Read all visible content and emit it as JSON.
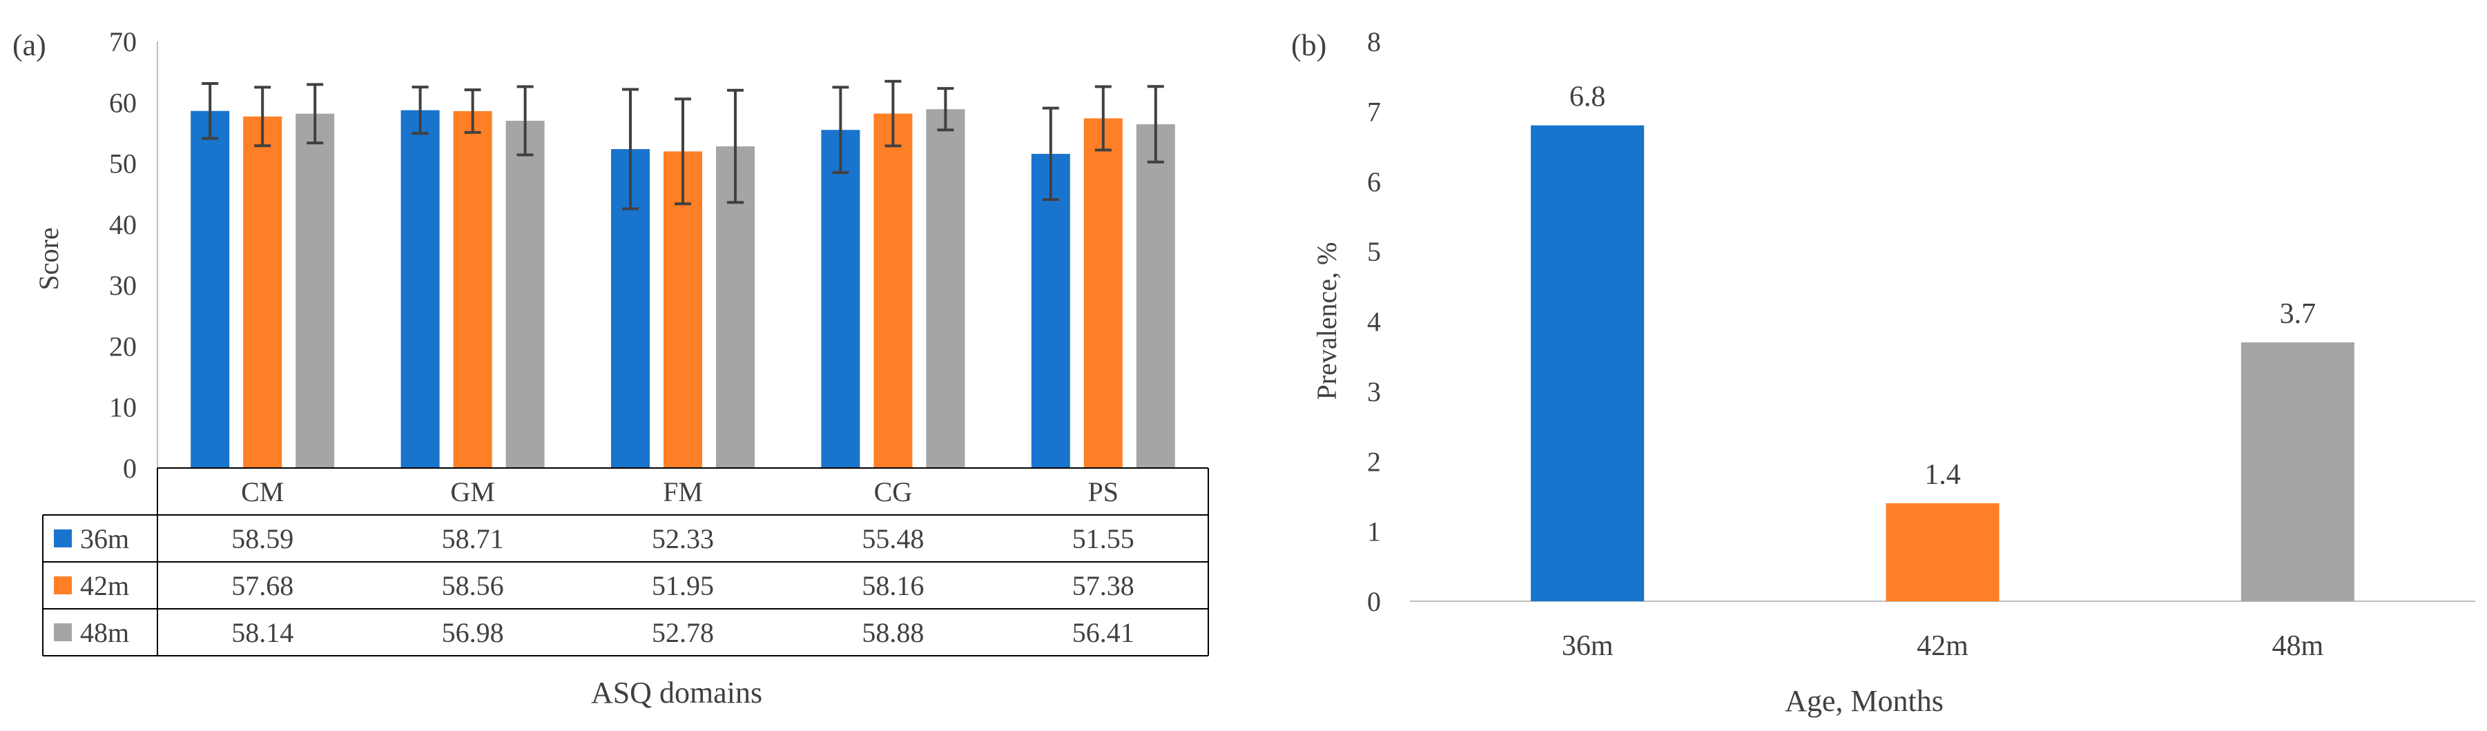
{
  "colors": {
    "s36": "#1874CD",
    "s42": "#FF7F27",
    "s48": "#A5A5A5",
    "text": "#404040",
    "axis": "#bfbfbf",
    "error": "#404040",
    "table": "#000000"
  },
  "chart_data": [
    {
      "type": "bar",
      "panel_label": "(a)",
      "categories": [
        "CM",
        "GM",
        "FM",
        "CG",
        "PS"
      ],
      "series": [
        {
          "name": "36m",
          "values": [
            58.59,
            58.71,
            52.33,
            55.48,
            51.55
          ],
          "errors": [
            4.5,
            3.8,
            9.8,
            7.0,
            7.5
          ]
        },
        {
          "name": "42m",
          "values": [
            57.68,
            58.56,
            51.95,
            58.16,
            57.38
          ],
          "errors": [
            4.8,
            3.5,
            8.6,
            5.3,
            5.2
          ]
        },
        {
          "name": "48m",
          "values": [
            58.14,
            56.98,
            52.78,
            58.88,
            56.41
          ],
          "errors": [
            4.8,
            5.6,
            9.2,
            3.4,
            6.2
          ]
        }
      ],
      "table_rows": [
        {
          "label": "36m",
          "cells": [
            "58.59",
            "58.71",
            "52.33",
            "55.48",
            "51.55"
          ]
        },
        {
          "label": "42m",
          "cells": [
            "57.68",
            "58.56",
            "51.95",
            "58.16",
            "57.38"
          ]
        },
        {
          "label": "48m",
          "cells": [
            "58.14",
            "56.98",
            "52.78",
            "58.88",
            "56.41"
          ]
        }
      ],
      "ylabel": "Score",
      "xlabel": "ASQ domains",
      "ylim": [
        0,
        70
      ],
      "yticks": [
        0,
        10,
        20,
        30,
        40,
        50,
        60,
        70
      ],
      "grid": false,
      "legend": "data-table"
    },
    {
      "type": "bar",
      "panel_label": "(b)",
      "categories": [
        "36m",
        "42m",
        "48m"
      ],
      "values": [
        6.8,
        1.4,
        3.7
      ],
      "data_labels": [
        "6.8",
        "1.4",
        "3.7"
      ],
      "ylabel": "Prevalence, %",
      "xlabel": "Age, Months",
      "ylim": [
        0,
        8
      ],
      "yticks": [
        0,
        1,
        2,
        3,
        4,
        5,
        6,
        7,
        8
      ],
      "grid": false
    }
  ]
}
